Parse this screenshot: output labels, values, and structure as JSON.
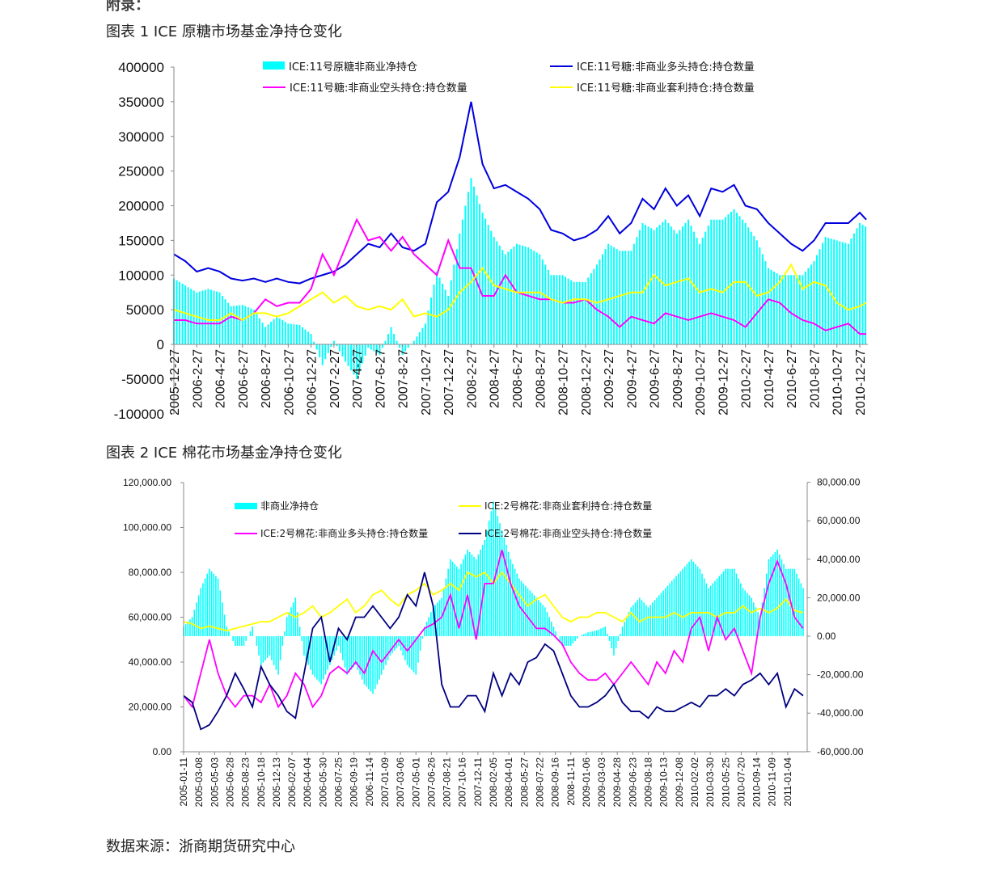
{
  "header": {
    "appendix": "附录：",
    "chart1_title": "图表 1 ICE 原糖市场基金净持仓变化",
    "chart2_title": "图表 2 ICE 棉花市场基金净持仓变化"
  },
  "footer": {
    "source": "数据来源：浙商期货研究中心"
  },
  "chart_data": [
    {
      "type": "bar+line",
      "grid": false,
      "legend_position": "top",
      "ylim": [
        -100000,
        400000
      ],
      "y_ticks": [
        "400000",
        "350000",
        "300000",
        "250000",
        "200000",
        "150000",
        "100000",
        "50000",
        "0",
        "-50000",
        "-100000"
      ],
      "y_tick_values": [
        400000,
        350000,
        300000,
        250000,
        200000,
        150000,
        100000,
        50000,
        0,
        -50000,
        -100000
      ],
      "x_ticks": [
        "2005-12-27",
        "2006-2-27",
        "2006-4-27",
        "2006-6-27",
        "2006-8-27",
        "2006-10-27",
        "2006-12-27",
        "2007-2-27",
        "2007-4-27",
        "2007-6-27",
        "2007-8-27",
        "2007-10-27",
        "2007-12-27",
        "2008-2-27",
        "2008-4-27",
        "2008-6-27",
        "2008-8-27",
        "2008-10-27",
        "2008-12-27",
        "2009-2-27",
        "2009-4-27",
        "2009-6-27",
        "2009-8-27",
        "2009-10-27",
        "2009-12-27",
        "2010-2-27",
        "2010-4-27",
        "2010-6-27",
        "2010-8-27",
        "2010-10-27",
        "2010-12-27"
      ],
      "x_start": "2005-12",
      "x_step": "1 month",
      "series": [
        {
          "name": "ICE:11号原糖非商业净持仓",
          "kind": "bar",
          "color": "#00ffff",
          "values": [
            95000,
            85000,
            75000,
            80000,
            75000,
            55000,
            57000,
            50000,
            25000,
            40000,
            30000,
            28000,
            15000,
            -30000,
            5000,
            -25000,
            -50000,
            -5000,
            -15000,
            25000,
            -15000,
            5000,
            30000,
            105000,
            70000,
            160000,
            240000,
            190000,
            155000,
            130000,
            145000,
            140000,
            130000,
            100000,
            100000,
            90000,
            90000,
            115000,
            145000,
            135000,
            135000,
            175000,
            165000,
            180000,
            160000,
            180000,
            145000,
            180000,
            180000,
            195000,
            175000,
            150000,
            110000,
            100000,
            100000,
            100000,
            120000,
            155000,
            150000,
            145000,
            175000,
            165000
          ]
        },
        {
          "name": "ICE:11号糖:非商业多头持仓:持仓数量",
          "kind": "line",
          "color": "#0000dd",
          "values": [
            130000,
            120000,
            105000,
            110000,
            105000,
            95000,
            92000,
            95000,
            90000,
            95000,
            90000,
            88000,
            95000,
            100000,
            105000,
            115000,
            130000,
            145000,
            140000,
            160000,
            140000,
            135000,
            145000,
            205000,
            220000,
            270000,
            350000,
            260000,
            225000,
            230000,
            220000,
            210000,
            195000,
            165000,
            160000,
            150000,
            155000,
            165000,
            185000,
            160000,
            175000,
            210000,
            195000,
            225000,
            200000,
            215000,
            185000,
            225000,
            220000,
            230000,
            200000,
            195000,
            175000,
            160000,
            145000,
            135000,
            150000,
            175000,
            175000,
            175000,
            190000,
            180000
          ]
        },
        {
          "name": "ICE:11号糖:非商业空头持仓:持仓数量",
          "kind": "line",
          "color": "#ff00ff",
          "values": [
            35000,
            35000,
            30000,
            30000,
            30000,
            40000,
            35000,
            45000,
            65000,
            55000,
            60000,
            60000,
            80000,
            130000,
            100000,
            140000,
            180000,
            150000,
            155000,
            135000,
            155000,
            130000,
            115000,
            100000,
            150000,
            110000,
            110000,
            70000,
            70000,
            100000,
            75000,
            70000,
            65000,
            65000,
            60000,
            60000,
            65000,
            50000,
            40000,
            25000,
            40000,
            35000,
            30000,
            45000,
            40000,
            35000,
            40000,
            45000,
            40000,
            35000,
            25000,
            45000,
            65000,
            60000,
            45000,
            35000,
            30000,
            20000,
            25000,
            30000,
            15000,
            15000
          ]
        },
        {
          "name": "ICE:11号糖:非商业套利持仓:持仓数量",
          "kind": "line",
          "color": "#ffff00",
          "values": [
            50000,
            45000,
            40000,
            35000,
            35000,
            45000,
            35000,
            45000,
            45000,
            40000,
            45000,
            55000,
            65000,
            75000,
            60000,
            70000,
            55000,
            50000,
            55000,
            50000,
            65000,
            40000,
            45000,
            40000,
            50000,
            75000,
            90000,
            110000,
            85000,
            80000,
            75000,
            75000,
            75000,
            65000,
            60000,
            65000,
            65000,
            60000,
            65000,
            70000,
            75000,
            75000,
            100000,
            85000,
            90000,
            95000,
            75000,
            80000,
            75000,
            90000,
            90000,
            70000,
            75000,
            90000,
            115000,
            80000,
            90000,
            85000,
            60000,
            50000,
            55000,
            60000
          ]
        }
      ]
    },
    {
      "type": "bar+line",
      "grid": false,
      "legend_position": "top",
      "ylim_left": [
        0,
        120000
      ],
      "ylim_right": [
        -60000,
        80000
      ],
      "y_ticks_left": [
        "120,000.00",
        "100,000.00",
        "80,000.00",
        "60,000.00",
        "40,000.00",
        "20,000.00",
        "0.00"
      ],
      "y_tick_values_left": [
        120000,
        100000,
        80000,
        60000,
        40000,
        20000,
        0
      ],
      "y_ticks_right": [
        "80,000.00",
        "60,000.00",
        "40,000.00",
        "20,000.00",
        "0.00",
        "-20,000.00",
        "-40,000.00",
        "-60,000.00"
      ],
      "y_tick_values_right": [
        80000,
        60000,
        40000,
        20000,
        0,
        -20000,
        -40000,
        -60000
      ],
      "x_ticks": [
        "2005-01-11",
        "2005-03-08",
        "2005-05-03",
        "2005-06-28",
        "2005-08-23",
        "2005-10-18",
        "2005-12-13",
        "2006-02-07",
        "2006-04-04",
        "2006-05-30",
        "2006-07-25",
        "2006-09-19",
        "2006-11-14",
        "2007-01-09",
        "2007-03-06",
        "2007-05-01",
        "2007-06-26",
        "2007-08-21",
        "2007-10-16",
        "2007-12-11",
        "2008-02-05",
        "2008-04-01",
        "2008-05-27",
        "2008-07-22",
        "2008-09-16",
        "2008-11-11",
        "2009-01-06",
        "2009-03-03",
        "2009-04-28",
        "2009-06-23",
        "2009-08-18",
        "2009-10-13",
        "2009-12-08",
        "2010-02-02",
        "2010-03-30",
        "2010-05-25",
        "2010-07-20",
        "2010-09-14",
        "2010-11-09",
        "2011-01-04"
      ],
      "x_start": "2005-01",
      "x_step": "1 month",
      "series": [
        {
          "name": "非商业净持仓",
          "kind": "bar",
          "axis": "right",
          "color": "#00ffff",
          "values": [
            5000,
            10000,
            25000,
            35000,
            30000,
            5000,
            -5000,
            -5000,
            5000,
            -15000,
            -10000,
            -20000,
            10000,
            20000,
            -10000,
            -20000,
            -25000,
            -15000,
            -5000,
            -20000,
            -15000,
            -25000,
            -30000,
            -20000,
            -10000,
            -5000,
            -15000,
            -20000,
            5000,
            15000,
            20000,
            40000,
            35000,
            45000,
            40000,
            50000,
            70000,
            55000,
            40000,
            30000,
            25000,
            20000,
            15000,
            5000,
            -5000,
            -5000,
            0,
            2000,
            3000,
            5000,
            -10000,
            5000,
            15000,
            20000,
            15000,
            20000,
            25000,
            30000,
            35000,
            40000,
            35000,
            25000,
            30000,
            35000,
            35000,
            25000,
            20000,
            10000,
            40000,
            45000,
            35000,
            35000,
            25000
          ]
        },
        {
          "name": "ICE:2号棉花:非商业套利持仓:持仓数量",
          "kind": "line",
          "axis": "left",
          "color": "#ffff00",
          "values": [
            58000,
            57000,
            55000,
            56000,
            55000,
            54000,
            55000,
            56000,
            57000,
            58000,
            58000,
            60000,
            62000,
            60000,
            62000,
            65000,
            60000,
            62000,
            65000,
            68000,
            62000,
            65000,
            70000,
            72000,
            68000,
            65000,
            70000,
            72000,
            75000,
            70000,
            72000,
            75000,
            72000,
            80000,
            78000,
            80000,
            75000,
            80000,
            75000,
            70000,
            65000,
            68000,
            70000,
            65000,
            60000,
            58000,
            60000,
            60000,
            62000,
            62000,
            60000,
            58000,
            62000,
            58000,
            60000,
            60000,
            60000,
            62000,
            60000,
            62000,
            62000,
            62000,
            60000,
            62000,
            62000,
            65000,
            62000,
            64000,
            62000,
            64000,
            68000,
            63000,
            62000
          ]
        },
        {
          "name": "ICE:2号棉花:非商业多头持仓:持仓数量",
          "kind": "line",
          "axis": "left",
          "color": "#ff00ff",
          "values": [
            25000,
            20000,
            35000,
            50000,
            35000,
            25000,
            20000,
            25000,
            25000,
            22000,
            30000,
            20000,
            25000,
            35000,
            30000,
            20000,
            25000,
            35000,
            38000,
            35000,
            40000,
            35000,
            45000,
            40000,
            45000,
            50000,
            45000,
            50000,
            55000,
            57000,
            60000,
            70000,
            55000,
            70000,
            50000,
            75000,
            75000,
            90000,
            75000,
            65000,
            60000,
            55000,
            55000,
            52000,
            48000,
            40000,
            35000,
            32000,
            32000,
            35000,
            30000,
            35000,
            40000,
            35000,
            30000,
            40000,
            35000,
            45000,
            40000,
            55000,
            60000,
            45000,
            60000,
            50000,
            55000,
            45000,
            35000,
            60000,
            75000,
            85000,
            75000,
            60000,
            55000
          ]
        },
        {
          "name": "ICE:2号棉花:非商业空头持仓:持仓数量",
          "kind": "line",
          "axis": "left",
          "color": "#000080",
          "values": [
            25000,
            22000,
            10000,
            12000,
            18000,
            25000,
            35000,
            28000,
            20000,
            38000,
            30000,
            25000,
            18000,
            15000,
            35000,
            55000,
            60000,
            40000,
            55000,
            50000,
            60000,
            60000,
            65000,
            60000,
            55000,
            60000,
            70000,
            65000,
            80000,
            65000,
            30000,
            20000,
            20000,
            25000,
            25000,
            18000,
            35000,
            25000,
            35000,
            30000,
            40000,
            42000,
            48000,
            45000,
            35000,
            25000,
            20000,
            20000,
            22000,
            25000,
            30000,
            22000,
            18000,
            18000,
            15000,
            20000,
            18000,
            18000,
            20000,
            22000,
            20000,
            25000,
            25000,
            28000,
            25000,
            30000,
            32000,
            35000,
            30000,
            35000,
            20000,
            28000,
            25000
          ]
        }
      ]
    }
  ]
}
